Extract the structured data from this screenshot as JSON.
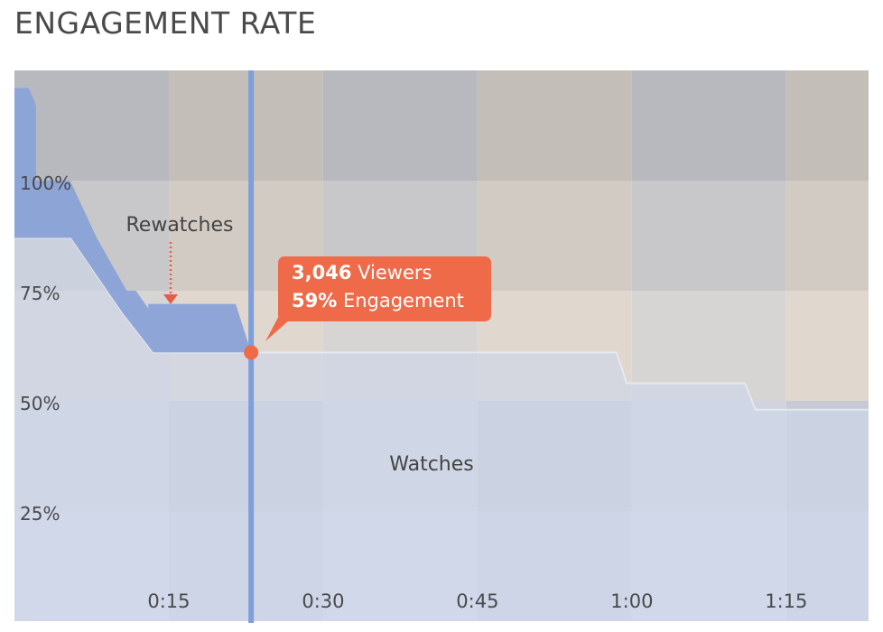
{
  "title": "ENGAGEMENT RATE",
  "chart_data": {
    "type": "area",
    "title": "ENGAGEMENT RATE",
    "xlabel": "",
    "ylabel": "",
    "x_ticks": [
      "0:15",
      "0:30",
      "0:45",
      "1:00",
      "1:15"
    ],
    "x_tick_values": [
      15,
      30,
      45,
      60,
      75
    ],
    "y_ticks": [
      "100%",
      "75%",
      "50%",
      "25%"
    ],
    "y_tick_values": [
      100,
      75,
      50,
      25
    ],
    "ylim": [
      0,
      125
    ],
    "xlim": [
      0,
      83
    ],
    "series": [
      {
        "name": "Rewatches",
        "x": [
          0,
          1.4,
          2.1,
          2.1,
          5.4,
          8.0,
          10.9,
          11.8,
          13.0,
          13.0,
          15.5,
          21.5,
          23.0
        ],
        "values": [
          121,
          121,
          117,
          100,
          100,
          87,
          75,
          75,
          71,
          72,
          72,
          72,
          61
        ]
      },
      {
        "name": "Watches",
        "x": [
          0,
          5.5,
          10.5,
          13.5,
          23.0,
          58.5,
          59.5,
          71.0,
          72.0,
          83.0
        ],
        "values": [
          87,
          87,
          70,
          61,
          61,
          61,
          54,
          54,
          48,
          48
        ]
      }
    ],
    "cursor": {
      "x": 23.0,
      "value": 59
    },
    "annotations": {
      "rewatches_label": "Rewatches",
      "watches_label": "Watches",
      "tooltip_viewers_value": "3,046",
      "tooltip_viewers_label": "Viewers",
      "tooltip_engagement_value": "59%",
      "tooltip_engagement_label": "Engagement"
    },
    "grid": true,
    "colors": {
      "rewatches": "#8aa2d8",
      "watches": "#cdd6ea",
      "cursor": "#7e9fda",
      "tooltip": "#ee6a48",
      "background_light": "#d9d1ca",
      "background_dark": "#b7b7bf"
    }
  }
}
